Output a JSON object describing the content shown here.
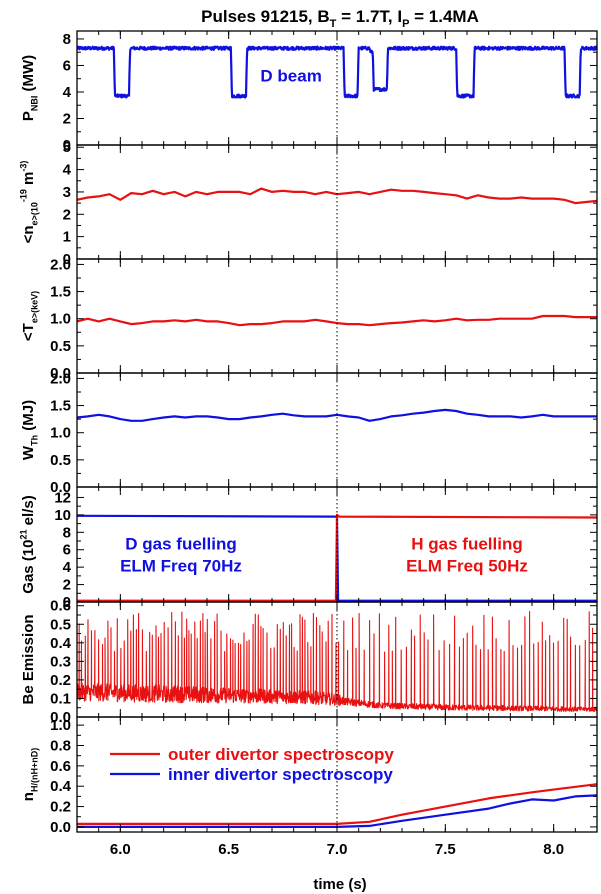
{
  "figure": {
    "title": "Pulses 91215, B_T = 1.7T, I_P = 1.4MA",
    "xlabel": "time (s)",
    "xlim": [
      5.8,
      8.2
    ],
    "xticks": [
      6.0,
      6.5,
      7.0,
      7.5,
      8.0
    ],
    "xticklabels": [
      "6.0",
      "6.5",
      "7.0",
      "7.5",
      "8.0"
    ],
    "marker_line_x": 7.0,
    "colors": {
      "blue": "#1010e0",
      "red": "#e81010"
    }
  },
  "chart_data": [
    {
      "type": "line",
      "ylabel": "P_NBI (MW)",
      "ylim": [
        0,
        8.6
      ],
      "yticks": [
        0,
        2,
        4,
        6,
        8
      ],
      "annotations": [
        {
          "text": "D beam",
          "x": 6.93,
          "y": 4.8,
          "color": "blue",
          "anchor": "end"
        }
      ],
      "series": [
        {
          "color": "blue",
          "noise": 0.12,
          "x": [
            5.8,
            5.97,
            5.975,
            6.04,
            6.045,
            6.51,
            6.515,
            6.58,
            6.585,
            7.03,
            7.035,
            7.095,
            7.1,
            7.15,
            7.155,
            7.165,
            7.17,
            7.23,
            7.235,
            7.55,
            7.555,
            7.63,
            7.635,
            8.05,
            8.055,
            8.12,
            8.125,
            8.2
          ],
          "y": [
            7.3,
            7.3,
            3.7,
            3.7,
            7.3,
            7.3,
            3.7,
            3.7,
            7.3,
            7.3,
            3.7,
            3.7,
            7.3,
            7.3,
            7.0,
            7.0,
            4.2,
            4.2,
            7.3,
            7.3,
            3.7,
            3.7,
            7.3,
            7.3,
            3.7,
            3.7,
            7.3,
            7.3
          ]
        }
      ]
    },
    {
      "type": "line",
      "ylabel": "<n_e>(10^-19 m^-3)",
      "ylim": [
        0,
        5.1
      ],
      "yticks": [
        0,
        1,
        2,
        3,
        4,
        5
      ],
      "series": [
        {
          "color": "red",
          "x": [
            5.8,
            5.85,
            5.9,
            5.95,
            6.0,
            6.05,
            6.1,
            6.15,
            6.2,
            6.25,
            6.3,
            6.35,
            6.4,
            6.45,
            6.5,
            6.55,
            6.6,
            6.65,
            6.7,
            6.75,
            6.8,
            6.85,
            6.9,
            6.95,
            7.0,
            7.05,
            7.1,
            7.15,
            7.2,
            7.25,
            7.3,
            7.35,
            7.4,
            7.45,
            7.5,
            7.55,
            7.6,
            7.65,
            7.7,
            7.75,
            7.8,
            7.85,
            7.9,
            7.95,
            8.0,
            8.05,
            8.1,
            8.15,
            8.2
          ],
          "y": [
            2.65,
            2.75,
            2.8,
            2.9,
            2.65,
            2.95,
            2.9,
            3.05,
            2.9,
            3.0,
            2.8,
            3.0,
            2.9,
            3.0,
            3.0,
            3.0,
            2.9,
            3.15,
            3.0,
            3.05,
            3.0,
            3.0,
            2.9,
            3.0,
            2.9,
            2.95,
            3.0,
            2.9,
            3.0,
            3.1,
            3.05,
            3.05,
            3.0,
            2.95,
            2.9,
            2.85,
            2.7,
            2.85,
            2.75,
            2.7,
            2.7,
            2.75,
            2.7,
            2.7,
            2.7,
            2.65,
            2.5,
            2.55,
            2.6
          ]
        }
      ]
    },
    {
      "type": "line",
      "ylabel": "<T_e>(keV)",
      "ylim": [
        0,
        2.1
      ],
      "yticks": [
        0.0,
        0.5,
        1.0,
        1.5,
        2.0
      ],
      "series": [
        {
          "color": "red",
          "x": [
            5.8,
            5.85,
            5.9,
            5.95,
            6.0,
            6.05,
            6.1,
            6.15,
            6.2,
            6.25,
            6.3,
            6.35,
            6.4,
            6.45,
            6.5,
            6.55,
            6.6,
            6.65,
            6.7,
            6.75,
            6.8,
            6.85,
            6.9,
            6.95,
            7.0,
            7.05,
            7.1,
            7.15,
            7.2,
            7.25,
            7.3,
            7.35,
            7.4,
            7.45,
            7.5,
            7.55,
            7.6,
            7.65,
            7.7,
            7.75,
            7.8,
            7.85,
            7.9,
            7.95,
            8.0,
            8.05,
            8.1,
            8.15,
            8.2
          ],
          "y": [
            0.95,
            1.0,
            0.95,
            1.0,
            0.95,
            0.9,
            0.92,
            0.95,
            0.95,
            0.97,
            0.95,
            0.98,
            0.95,
            0.95,
            0.92,
            0.88,
            0.9,
            0.9,
            0.92,
            0.95,
            0.95,
            0.95,
            0.98,
            0.95,
            0.92,
            0.9,
            0.9,
            0.88,
            0.9,
            0.92,
            0.93,
            0.95,
            0.97,
            0.95,
            0.97,
            1.0,
            0.97,
            0.98,
            0.98,
            1.0,
            1.0,
            1.0,
            1.0,
            1.05,
            1.05,
            1.05,
            1.03,
            1.03,
            1.03
          ]
        }
      ]
    },
    {
      "type": "line",
      "ylabel": "W_Th (MJ)",
      "ylim": [
        0,
        2.1
      ],
      "yticks": [
        0.0,
        0.5,
        1.0,
        1.5,
        2.0
      ],
      "series": [
        {
          "color": "blue",
          "x": [
            5.8,
            5.85,
            5.9,
            5.95,
            6.0,
            6.05,
            6.1,
            6.15,
            6.2,
            6.25,
            6.3,
            6.35,
            6.4,
            6.45,
            6.5,
            6.55,
            6.6,
            6.65,
            6.7,
            6.75,
            6.8,
            6.85,
            6.9,
            6.95,
            7.0,
            7.05,
            7.1,
            7.15,
            7.2,
            7.25,
            7.3,
            7.35,
            7.4,
            7.45,
            7.5,
            7.55,
            7.6,
            7.65,
            7.7,
            7.75,
            7.8,
            7.85,
            7.9,
            7.95,
            8.0,
            8.05,
            8.1,
            8.15,
            8.2
          ],
          "y": [
            1.28,
            1.3,
            1.33,
            1.3,
            1.25,
            1.22,
            1.22,
            1.25,
            1.28,
            1.3,
            1.28,
            1.3,
            1.3,
            1.28,
            1.25,
            1.25,
            1.28,
            1.3,
            1.33,
            1.35,
            1.32,
            1.3,
            1.3,
            1.3,
            1.33,
            1.3,
            1.28,
            1.22,
            1.25,
            1.3,
            1.32,
            1.35,
            1.37,
            1.4,
            1.42,
            1.4,
            1.35,
            1.33,
            1.3,
            1.3,
            1.3,
            1.28,
            1.3,
            1.33,
            1.3,
            1.3,
            1.3,
            1.3,
            1.3
          ]
        }
      ]
    },
    {
      "type": "line",
      "ylabel": "Gas (10^21 el/s)",
      "ylim": [
        0,
        13.2
      ],
      "yticks": [
        0,
        2,
        4,
        6,
        8,
        10,
        12
      ],
      "annotations": [
        {
          "text": "D gas fuelling",
          "x": 6.28,
          "y": 6.0,
          "color": "blue",
          "anchor": "middle"
        },
        {
          "text": "ELM Freq 70Hz",
          "x": 6.28,
          "y": 3.5,
          "color": "blue",
          "anchor": "middle"
        },
        {
          "text": "H gas fuelling",
          "x": 7.6,
          "y": 6.0,
          "color": "red",
          "anchor": "middle"
        },
        {
          "text": "ELM Freq 50Hz",
          "x": 7.6,
          "y": 3.5,
          "color": "red",
          "anchor": "middle"
        }
      ],
      "series": [
        {
          "color": "blue",
          "x": [
            5.8,
            7.0,
            7.005,
            8.2
          ],
          "y": [
            9.9,
            9.8,
            0.15,
            0.15
          ]
        },
        {
          "color": "red",
          "x": [
            5.8,
            6.995,
            7.0,
            7.01,
            8.2
          ],
          "y": [
            0.15,
            0.15,
            10.0,
            9.8,
            9.7
          ]
        }
      ]
    },
    {
      "type": "line",
      "ylabel": "Be Emission",
      "ylim": [
        0,
        0.62
      ],
      "yticks": [
        0.0,
        0.1,
        0.2,
        0.3,
        0.4,
        0.5,
        0.6
      ],
      "series": [
        {
          "color": "red",
          "style": "elm",
          "base": {
            "x": [
              5.8,
              6.2,
              6.6,
              6.9,
              7.0,
              7.05,
              7.2,
              7.5,
              8.2
            ],
            "y": [
              0.13,
              0.12,
              0.11,
              0.1,
              0.09,
              0.08,
              0.06,
              0.05,
              0.04
            ]
          },
          "noise": [
            0.06,
            0.06,
            0.05,
            0.045,
            0.04,
            0.025,
            0.02,
            0.02,
            0.015
          ],
          "elm_freq": [
            70,
            50
          ],
          "peak_range": [
            0.35,
            0.57
          ]
        }
      ]
    },
    {
      "type": "line",
      "ylabel": "n_H/(n_H+n_D)",
      "ylim": [
        -0.05,
        1.08
      ],
      "yticks": [
        0.0,
        0.2,
        0.4,
        0.6,
        0.8,
        1.0
      ],
      "legend": "top-left",
      "series": [
        {
          "name": "outer divertor spectroscopy",
          "color": "red",
          "x": [
            5.8,
            6.0,
            6.5,
            7.0,
            7.15,
            7.3,
            7.5,
            7.7,
            7.9,
            8.05,
            8.2
          ],
          "y": [
            0.03,
            0.03,
            0.03,
            0.03,
            0.05,
            0.12,
            0.2,
            0.28,
            0.34,
            0.38,
            0.42
          ]
        },
        {
          "name": "inner divertor spectroscopy",
          "color": "blue",
          "x": [
            5.8,
            6.0,
            6.5,
            7.0,
            7.15,
            7.3,
            7.5,
            7.7,
            7.8,
            7.9,
            8.0,
            8.1,
            8.2
          ],
          "y": [
            0.0,
            0.0,
            0.0,
            0.0,
            0.01,
            0.06,
            0.12,
            0.18,
            0.23,
            0.27,
            0.26,
            0.3,
            0.31
          ]
        }
      ]
    }
  ]
}
